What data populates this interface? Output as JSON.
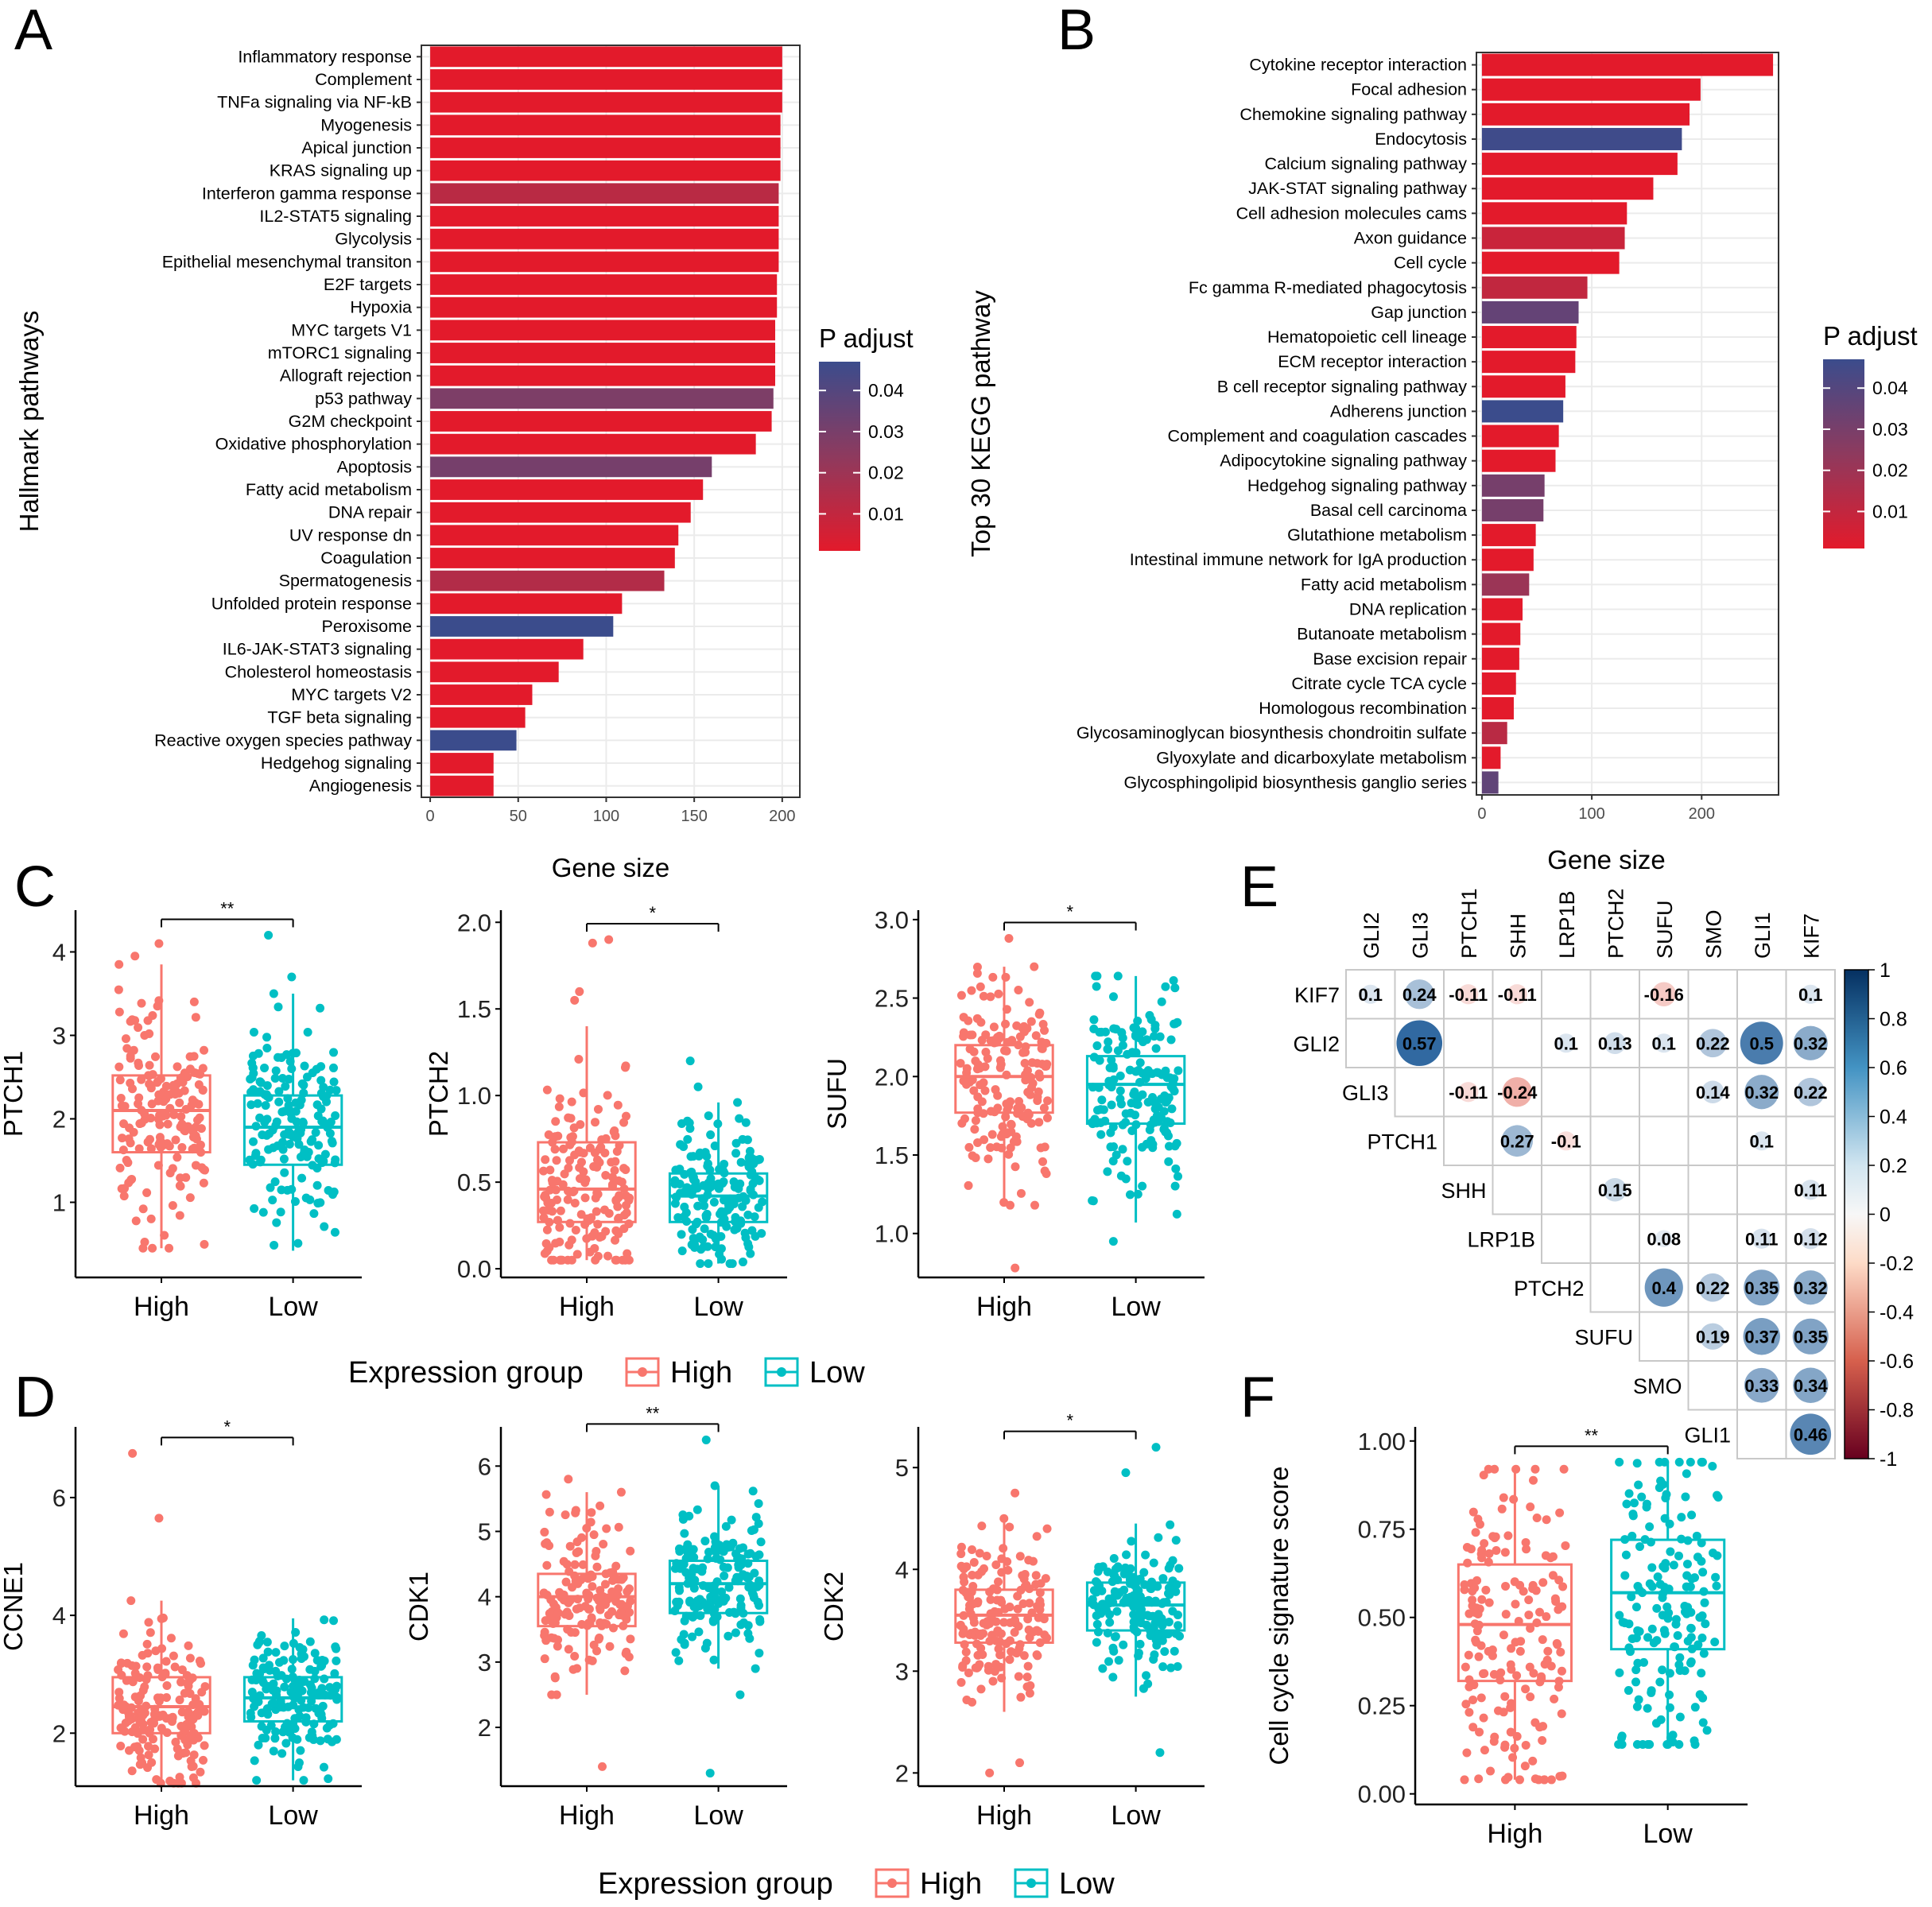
{
  "colors": {
    "high": "#F8766D",
    "low": "#00BFC4",
    "padj_low": "#E31A2B",
    "padj_mid": "#8E3A5E",
    "padj_high": "#3B4C8C",
    "grid": "#EBEBEB",
    "corr_pos": "#1F5C99",
    "corr_neg": "#D7301F"
  },
  "panel_labels": [
    "A",
    "B",
    "C",
    "D",
    "E",
    "F"
  ],
  "legend": {
    "title": "Expression group",
    "items": [
      "High",
      "Low"
    ]
  },
  "chart_data": [
    {
      "id": "A",
      "type": "bar",
      "orientation": "horizontal",
      "ylabel": "Hallmark pathways",
      "xlabel": "Gene size",
      "xlim": [
        -5,
        210
      ],
      "xticks": [
        0,
        50,
        100,
        150,
        200
      ],
      "legend_title": "P adjust",
      "legend_ticks": [
        "0.04",
        "0.03",
        "0.02",
        "0.01"
      ],
      "categories": [
        "Inflammatory response",
        "Complement",
        "TNFa signaling via NF-kB",
        "Myogenesis",
        "Apical junction",
        "KRAS signaling up",
        "Interferon gamma response",
        "IL2-STAT5 signaling",
        "Glycolysis",
        "Epithelial mesenchymal transiton",
        "E2F targets",
        "Hypoxia",
        "MYC targets V1",
        "mTORC1 signaling",
        "Allograft rejection",
        "p53 pathway",
        "G2M checkpoint",
        "Oxidative phosphorylation",
        "Apoptosis",
        "Fatty acid metabolism",
        "DNA repair",
        "UV response dn",
        "Coagulation",
        "Spermatogenesis",
        "Unfolded protein response",
        "Peroxisome",
        "IL6-JAK-STAT3 signaling",
        "Cholesterol homeostasis",
        "MYC targets V2",
        "TGF beta signaling",
        "Reactive oxygen species pathway",
        "Hedgehog signaling",
        "Angiogenesis"
      ],
      "values": [
        200,
        200,
        200,
        199,
        199,
        199,
        198,
        198,
        198,
        198,
        197,
        197,
        196,
        196,
        196,
        195,
        194,
        185,
        160,
        155,
        148,
        141,
        139,
        133,
        109,
        104,
        87,
        73,
        58,
        54,
        49,
        36,
        36
      ],
      "padj": [
        0.001,
        0.001,
        0.001,
        0.001,
        0.001,
        0.001,
        0.012,
        0.001,
        0.001,
        0.001,
        0.001,
        0.001,
        0.001,
        0.001,
        0.001,
        0.028,
        0.001,
        0.001,
        0.03,
        0.001,
        0.001,
        0.001,
        0.001,
        0.014,
        0.001,
        0.046,
        0.001,
        0.001,
        0.001,
        0.001,
        0.046,
        0.001,
        0.001
      ]
    },
    {
      "id": "B",
      "type": "bar",
      "orientation": "horizontal",
      "ylabel": "Top 30 KEGG pathway",
      "xlim": [
        -5,
        270
      ],
      "xticks": [
        0,
        100,
        200
      ],
      "legend_title": "P adjust",
      "legend_ticks": [
        "0.04",
        "0.03",
        "0.02",
        "0.01"
      ],
      "categories": [
        "Cytokine receptor interaction",
        "Focal adhesion",
        "Chemokine signaling pathway",
        "Endocytosis",
        "Calcium signaling pathway",
        "JAK-STAT signaling pathway",
        "Cell adhesion molecules cams",
        "Axon guidance",
        "Cell cycle",
        "Fc gamma R-mediated phagocytosis",
        "Gap junction",
        "Hematopoietic cell lineage",
        "ECM receptor interaction",
        "B cell receptor signaling pathway",
        "Adherens junction",
        "Complement and coagulation cascades",
        "Adipocytokine signaling pathway",
        "Hedgehog signaling pathway",
        "Basal cell carcinoma",
        "Glutathione metabolism",
        "Intestinal immune network for IgA production",
        "Fatty acid metabolism",
        "DNA replication",
        "Butanoate metabolism",
        "Base excision repair",
        "Citrate cycle TCA cycle",
        "Homologous recombination",
        "Glycosaminoglycan biosynthesis chondroitin sulfate",
        "Glyoxylate and dicarboxylate metabolism",
        "Glycosphingolipid biosynthesis ganglio series"
      ],
      "values": [
        265,
        199,
        189,
        182,
        178,
        156,
        132,
        130,
        125,
        96,
        88,
        86,
        85,
        76,
        74,
        70,
        67,
        57,
        56,
        49,
        47,
        43,
        37,
        35,
        34,
        31,
        29,
        23,
        17,
        15
      ],
      "padj": [
        0.001,
        0.001,
        0.001,
        0.045,
        0.001,
        0.001,
        0.001,
        0.008,
        0.001,
        0.01,
        0.035,
        0.001,
        0.001,
        0.001,
        0.046,
        0.001,
        0.001,
        0.03,
        0.03,
        0.001,
        0.001,
        0.02,
        0.001,
        0.001,
        0.001,
        0.001,
        0.001,
        0.012,
        0.001,
        0.036
      ]
    },
    {
      "id": "C1",
      "type": "box",
      "ylabel": "PTCH1",
      "categories": [
        "High",
        "Low"
      ],
      "ylim": [
        0.1,
        4.5
      ],
      "yticks": [
        1,
        2,
        3,
        4
      ],
      "yticklabels": [
        "1",
        "2",
        "3",
        "4"
      ],
      "significance": "**",
      "boxes": [
        {
          "min": 0.45,
          "q1": 1.6,
          "median": 2.1,
          "q3": 2.52,
          "max": 3.85,
          "outliers": [
            4.1,
            3.95,
            0.45
          ]
        },
        {
          "min": 0.42,
          "q1": 1.45,
          "median": 1.9,
          "q3": 2.28,
          "max": 3.5,
          "outliers": [
            4.2,
            3.7
          ]
        }
      ]
    },
    {
      "id": "C2",
      "type": "box",
      "ylabel": "PTCH2",
      "categories": [
        "High",
        "Low"
      ],
      "ylim": [
        -0.05,
        2.07
      ],
      "yticks": [
        0,
        0.5,
        1,
        1.5,
        2
      ],
      "yticklabels": [
        "0.0",
        "0.5",
        "1.0",
        "1.5",
        "2.0"
      ],
      "significance": "*",
      "boxes": [
        {
          "min": 0.05,
          "q1": 0.27,
          "median": 0.46,
          "q3": 0.73,
          "max": 1.4,
          "outliers": [
            1.9,
            1.88,
            1.6,
            1.55
          ]
        },
        {
          "min": 0.03,
          "q1": 0.27,
          "median": 0.42,
          "q3": 0.55,
          "max": 0.96,
          "outliers": [
            1.2,
            1.05
          ]
        }
      ]
    },
    {
      "id": "C3",
      "type": "box",
      "ylabel": "SUFU",
      "categories": [
        "High",
        "Low"
      ],
      "ylim": [
        0.72,
        3.06
      ],
      "yticks": [
        1,
        1.5,
        2,
        2.5,
        3
      ],
      "yticklabels": [
        "1.0",
        "1.5",
        "2.0",
        "2.5",
        "3.0"
      ],
      "significance": "*",
      "boxes": [
        {
          "min": 1.18,
          "q1": 1.77,
          "median": 2.0,
          "q3": 2.2,
          "max": 2.7,
          "outliers": [
            2.88,
            0.78
          ]
        },
        {
          "min": 1.07,
          "q1": 1.7,
          "median": 1.95,
          "q3": 2.13,
          "max": 2.64,
          "outliers": [
            0.95
          ]
        }
      ]
    },
    {
      "id": "D1",
      "type": "box",
      "ylabel": "CCNE1",
      "categories": [
        "High",
        "Low"
      ],
      "ylim": [
        1.1,
        7.2
      ],
      "yticks": [
        2,
        4,
        6
      ],
      "yticklabels": [
        "2",
        "4",
        "6"
      ],
      "significance": "*",
      "boxes": [
        {
          "min": 1.15,
          "q1": 2.0,
          "median": 2.45,
          "q3": 2.95,
          "max": 4.25,
          "outliers": [
            6.75,
            5.65
          ]
        },
        {
          "min": 1.2,
          "q1": 2.2,
          "median": 2.6,
          "q3": 2.95,
          "max": 3.95,
          "outliers": []
        }
      ]
    },
    {
      "id": "D2",
      "type": "box",
      "ylabel": "CDK1",
      "categories": [
        "High",
        "Low"
      ],
      "ylim": [
        1.1,
        6.6
      ],
      "yticks": [
        2,
        3,
        4,
        5,
        6
      ],
      "yticklabels": [
        "2",
        "3",
        "4",
        "5",
        "6"
      ],
      "significance": "**",
      "boxes": [
        {
          "min": 2.5,
          "q1": 3.55,
          "median": 4.0,
          "q3": 4.35,
          "max": 5.6,
          "outliers": [
            1.4,
            5.8
          ]
        },
        {
          "min": 2.9,
          "q1": 3.75,
          "median": 4.2,
          "q3": 4.55,
          "max": 5.7,
          "outliers": [
            6.4,
            2.5,
            1.3
          ]
        }
      ]
    },
    {
      "id": "D3",
      "type": "box",
      "ylabel": "CDK2",
      "categories": [
        "High",
        "Low"
      ],
      "ylim": [
        1.87,
        5.4
      ],
      "yticks": [
        2,
        3,
        4,
        5
      ],
      "yticklabels": [
        "2",
        "3",
        "4",
        "5"
      ],
      "significance": "*",
      "boxes": [
        {
          "min": 2.6,
          "q1": 3.28,
          "median": 3.55,
          "q3": 3.8,
          "max": 4.5,
          "outliers": [
            2.0,
            2.1,
            4.75
          ]
        },
        {
          "min": 2.75,
          "q1": 3.4,
          "median": 3.65,
          "q3": 3.87,
          "max": 4.45,
          "outliers": [
            5.2,
            2.2,
            4.95
          ]
        }
      ]
    },
    {
      "id": "F",
      "type": "box",
      "ylabel": "Cell cycle signature score",
      "categories": [
        "High",
        "Low"
      ],
      "ylim": [
        -0.03,
        1.04
      ],
      "yticks": [
        0,
        0.25,
        0.5,
        0.75,
        1
      ],
      "yticklabels": [
        "0.00",
        "0.25",
        "0.50",
        "0.75",
        "1.00"
      ],
      "significance": "**",
      "boxes": [
        {
          "min": 0.04,
          "q1": 0.32,
          "median": 0.48,
          "q3": 0.65,
          "max": 0.92,
          "outliers": []
        },
        {
          "min": 0.14,
          "q1": 0.41,
          "median": 0.57,
          "q3": 0.72,
          "max": 0.94,
          "outliers": []
        }
      ]
    },
    {
      "id": "E",
      "type": "heatmap",
      "subtype": "correlation upper triangle",
      "columns": [
        "GLI2",
        "GLI3",
        "PTCH1",
        "SHH",
        "LRP1B",
        "PTCH2",
        "SUFU",
        "SMO",
        "GLI1",
        "KIF7"
      ],
      "rows": [
        "KIF7",
        "GLI2",
        "GLI3",
        "PTCH1",
        "SHH",
        "LRP1B",
        "PTCH2",
        "SUFU",
        "SMO",
        "GLI1"
      ],
      "colorbar": {
        "ticks": [
          "1",
          "0.8",
          "0.6",
          "0.4",
          "0.2",
          "0",
          "-0.2",
          "-0.4",
          "-0.6",
          "-0.8",
          "-1"
        ]
      },
      "cells": [
        {
          "r": 0,
          "c": 0,
          "v": 0.1,
          "label": "0.1"
        },
        {
          "r": 0,
          "c": 1,
          "v": 0.24,
          "label": "0.24"
        },
        {
          "r": 0,
          "c": 2,
          "v": -0.11,
          "label": "-0.11"
        },
        {
          "r": 0,
          "c": 3,
          "v": -0.11,
          "label": "-0.11"
        },
        {
          "r": 0,
          "c": 6,
          "v": -0.16,
          "label": "-0.16"
        },
        {
          "r": 0,
          "c": 9,
          "v": 0.1,
          "label": "0.1"
        },
        {
          "r": 1,
          "c": 1,
          "v": 0.57,
          "label": "0.57"
        },
        {
          "r": 1,
          "c": 4,
          "v": 0.1,
          "label": "0.1"
        },
        {
          "r": 1,
          "c": 5,
          "v": 0.13,
          "label": "0.13"
        },
        {
          "r": 1,
          "c": 6,
          "v": 0.1,
          "label": "0.1"
        },
        {
          "r": 1,
          "c": 7,
          "v": 0.22,
          "label": "0.22"
        },
        {
          "r": 1,
          "c": 8,
          "v": 0.5,
          "label": "0.5"
        },
        {
          "r": 1,
          "c": 9,
          "v": 0.32,
          "label": "0.32"
        },
        {
          "r": 2,
          "c": 2,
          "v": -0.11,
          "label": "-0.11"
        },
        {
          "r": 2,
          "c": 3,
          "v": -0.24,
          "label": "-0.24"
        },
        {
          "r": 2,
          "c": 7,
          "v": 0.14,
          "label": "0.14"
        },
        {
          "r": 2,
          "c": 8,
          "v": 0.32,
          "label": "0.32"
        },
        {
          "r": 2,
          "c": 9,
          "v": 0.22,
          "label": "0.22"
        },
        {
          "r": 3,
          "c": 3,
          "v": 0.27,
          "label": "0.27"
        },
        {
          "r": 3,
          "c": 4,
          "v": -0.1,
          "label": "-0.1"
        },
        {
          "r": 3,
          "c": 8,
          "v": 0.1,
          "label": "0.1"
        },
        {
          "r": 4,
          "c": 5,
          "v": 0.15,
          "label": "0.15"
        },
        {
          "r": 4,
          "c": 9,
          "v": 0.11,
          "label": "0.11"
        },
        {
          "r": 5,
          "c": 6,
          "v": 0.08,
          "label": "0.08"
        },
        {
          "r": 5,
          "c": 8,
          "v": 0.11,
          "label": "0.11"
        },
        {
          "r": 5,
          "c": 9,
          "v": 0.12,
          "label": "0.12"
        },
        {
          "r": 6,
          "c": 6,
          "v": 0.4,
          "label": "0.4"
        },
        {
          "r": 6,
          "c": 7,
          "v": 0.22,
          "label": "0.22"
        },
        {
          "r": 6,
          "c": 8,
          "v": 0.35,
          "label": "0.35"
        },
        {
          "r": 6,
          "c": 9,
          "v": 0.32,
          "label": "0.32"
        },
        {
          "r": 7,
          "c": 7,
          "v": 0.19,
          "label": "0.19"
        },
        {
          "r": 7,
          "c": 8,
          "v": 0.37,
          "label": "0.37"
        },
        {
          "r": 7,
          "c": 9,
          "v": 0.35,
          "label": "0.35"
        },
        {
          "r": 8,
          "c": 8,
          "v": 0.33,
          "label": "0.33"
        },
        {
          "r": 8,
          "c": 9,
          "v": 0.34,
          "label": "0.34"
        },
        {
          "r": 9,
          "c": 9,
          "v": 0.46,
          "label": "0.46"
        }
      ]
    }
  ]
}
